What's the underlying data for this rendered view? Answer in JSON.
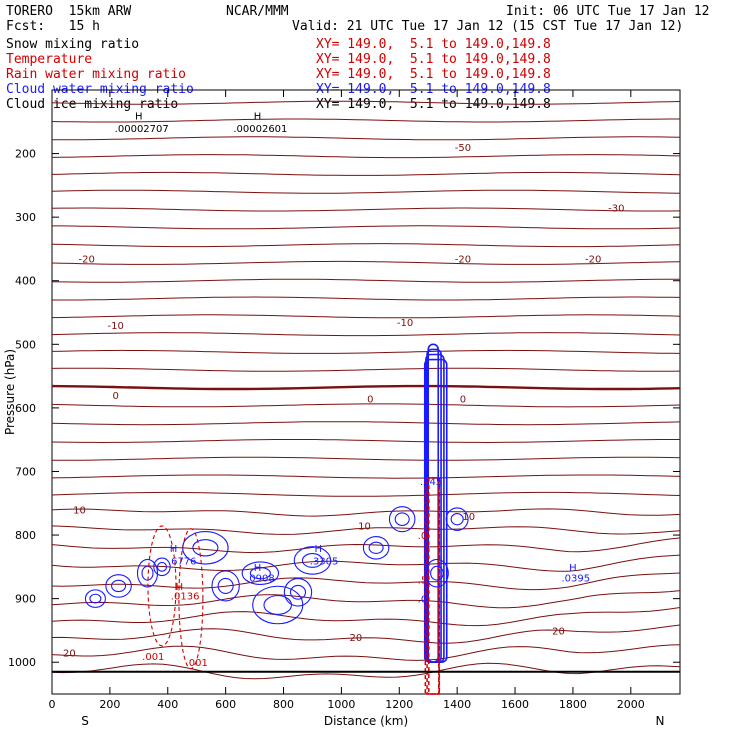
{
  "header": {
    "model": "TORERO  15km ARW",
    "center": "NCAR/MMM",
    "init": "Init: 06 UTC Tue 17 Jan 12",
    "fcst_label": "Fcst:   15 h",
    "valid": "Valid: 21 UTC Tue 17 Jan 12 (15 CST Tue 17 Jan 12)",
    "fields": [
      {
        "name": "Snow mixing ratio",
        "color": "#000000",
        "xy": "XY= 149.0,  5.1 to 149.0,149.8"
      },
      {
        "name": "Temperature",
        "color": "#d10000",
        "xy": "XY= 149.0,  5.1 to 149.0,149.8"
      },
      {
        "name": "Rain water mixing ratio",
        "color": "#d10000",
        "xy": "XY= 149.0,  5.1 to 149.0,149.8"
      },
      {
        "name": "Cloud water mixing ratio",
        "color": "#1a1aff",
        "xy": "XY= 149.0,  5.1 to 149.0,149.8"
      },
      {
        "name": "Cloud ice mixing ratio",
        "color": "#000000",
        "xy": "XY= 149.0,  5.1 to 149.0,149.8"
      }
    ]
  },
  "chart_data": {
    "type": "contour",
    "xlabel": "Distance (km)",
    "ylabel": "Pressure (hPa)",
    "xlim": [
      0,
      2170
    ],
    "ylim": [
      1050,
      100
    ],
    "y_scale": "linear",
    "x_ticks": [
      0,
      200,
      400,
      600,
      800,
      1000,
      1200,
      1400,
      1600,
      1800,
      2000
    ],
    "x_tick_labels": [
      "0",
      "200",
      "400",
      "600",
      "800",
      "1000",
      "1200",
      "1400",
      "1600",
      "1800",
      "2000"
    ],
    "y_ticks": [
      200,
      300,
      400,
      500,
      600,
      700,
      800,
      900,
      1000
    ],
    "y_tick_labels": [
      "200",
      "300",
      "400",
      "500",
      "600",
      "700",
      "800",
      "900",
      "1000"
    ],
    "x_end_labels": {
      "left": "S",
      "right": "N"
    },
    "temperature_contour_interval": 5,
    "temperature_color": "#7a1010",
    "temperature_labels": [
      {
        "text": "-50",
        "x": 1420,
        "p": 190
      },
      {
        "text": "-30",
        "x": 1950,
        "p": 285
      },
      {
        "text": "-20",
        "x": 120,
        "p": 365
      },
      {
        "text": "-20",
        "x": 1420,
        "p": 365
      },
      {
        "text": "-20",
        "x": 1870,
        "p": 365
      },
      {
        "text": "-10",
        "x": 220,
        "p": 470
      },
      {
        "text": "-10",
        "x": 1220,
        "p": 465
      },
      {
        "text": "0",
        "x": 220,
        "p": 580
      },
      {
        "text": "0",
        "x": 1100,
        "p": 585
      },
      {
        "text": "0",
        "x": 1420,
        "p": 585
      },
      {
        "text": "10",
        "x": 95,
        "p": 760
      },
      {
        "text": "10",
        "x": 1080,
        "p": 785
      },
      {
        "text": "10",
        "x": 1440,
        "p": 770
      },
      {
        "text": "20",
        "x": 60,
        "p": 985
      },
      {
        "text": "20",
        "x": 1050,
        "p": 960
      },
      {
        "text": "20",
        "x": 1750,
        "p": 950
      }
    ],
    "extrema_labels": [
      {
        "text": "H",
        "x": 300,
        "p": 140,
        "color": "#000000"
      },
      {
        "text": ".00002707",
        "x": 310,
        "p": 160,
        "color": "#000000"
      },
      {
        "text": "H",
        "x": 710,
        "p": 140,
        "color": "#000000"
      },
      {
        "text": ".00002601",
        "x": 720,
        "p": 160,
        "color": "#000000"
      },
      {
        "text": "H",
        "x": 420,
        "p": 820,
        "color": "#1a1aff"
      },
      {
        "text": ".6776",
        "x": 450,
        "p": 840,
        "color": "#1a1aff"
      },
      {
        "text": "H",
        "x": 440,
        "p": 880,
        "color": "#d10000"
      },
      {
        "text": ".0136",
        "x": 460,
        "p": 895,
        "color": "#d10000"
      },
      {
        "text": "H",
        "x": 710,
        "p": 850,
        "color": "#1a1aff"
      },
      {
        "text": ".0908",
        "x": 720,
        "p": 867,
        "color": "#1a1aff"
      },
      {
        "text": "H",
        "x": 920,
        "p": 820,
        "color": "#1a1aff"
      },
      {
        "text": ".3305",
        "x": 940,
        "p": 840,
        "color": "#1a1aff"
      },
      {
        "text": "H",
        "x": 1800,
        "p": 850,
        "color": "#1a1aff"
      },
      {
        "text": ".0395",
        "x": 1810,
        "p": 867,
        "color": "#1a1aff"
      },
      {
        "text": ".001",
        "x": 350,
        "p": 990,
        "color": "#d10000"
      },
      {
        "text": ".001",
        "x": 500,
        "p": 1000,
        "color": "#d10000"
      },
      {
        "text": ".545",
        "x": 1310,
        "p": 715,
        "color": "#1a1aff"
      },
      {
        "text": ".5",
        "x": 1280,
        "p": 870,
        "color": "#d10000"
      },
      {
        "text": ".0",
        "x": 1280,
        "p": 800,
        "color": "#d10000"
      },
      {
        "text": ".0",
        "x": 1280,
        "p": 900,
        "color": "#1a1aff"
      }
    ],
    "features": [
      {
        "field": "Cloud water mixing ratio",
        "x_range": [
          1285,
          1350
        ],
        "p_range": [
          500,
          1000
        ]
      },
      {
        "field": "Rain water mixing ratio",
        "x_range": [
          1285,
          1350
        ],
        "p_range": [
          700,
          1050
        ]
      },
      {
        "field": "Cloud water mixing ratio",
        "x_range": [
          100,
          620
        ],
        "p_range": [
          780,
          960
        ]
      }
    ]
  }
}
